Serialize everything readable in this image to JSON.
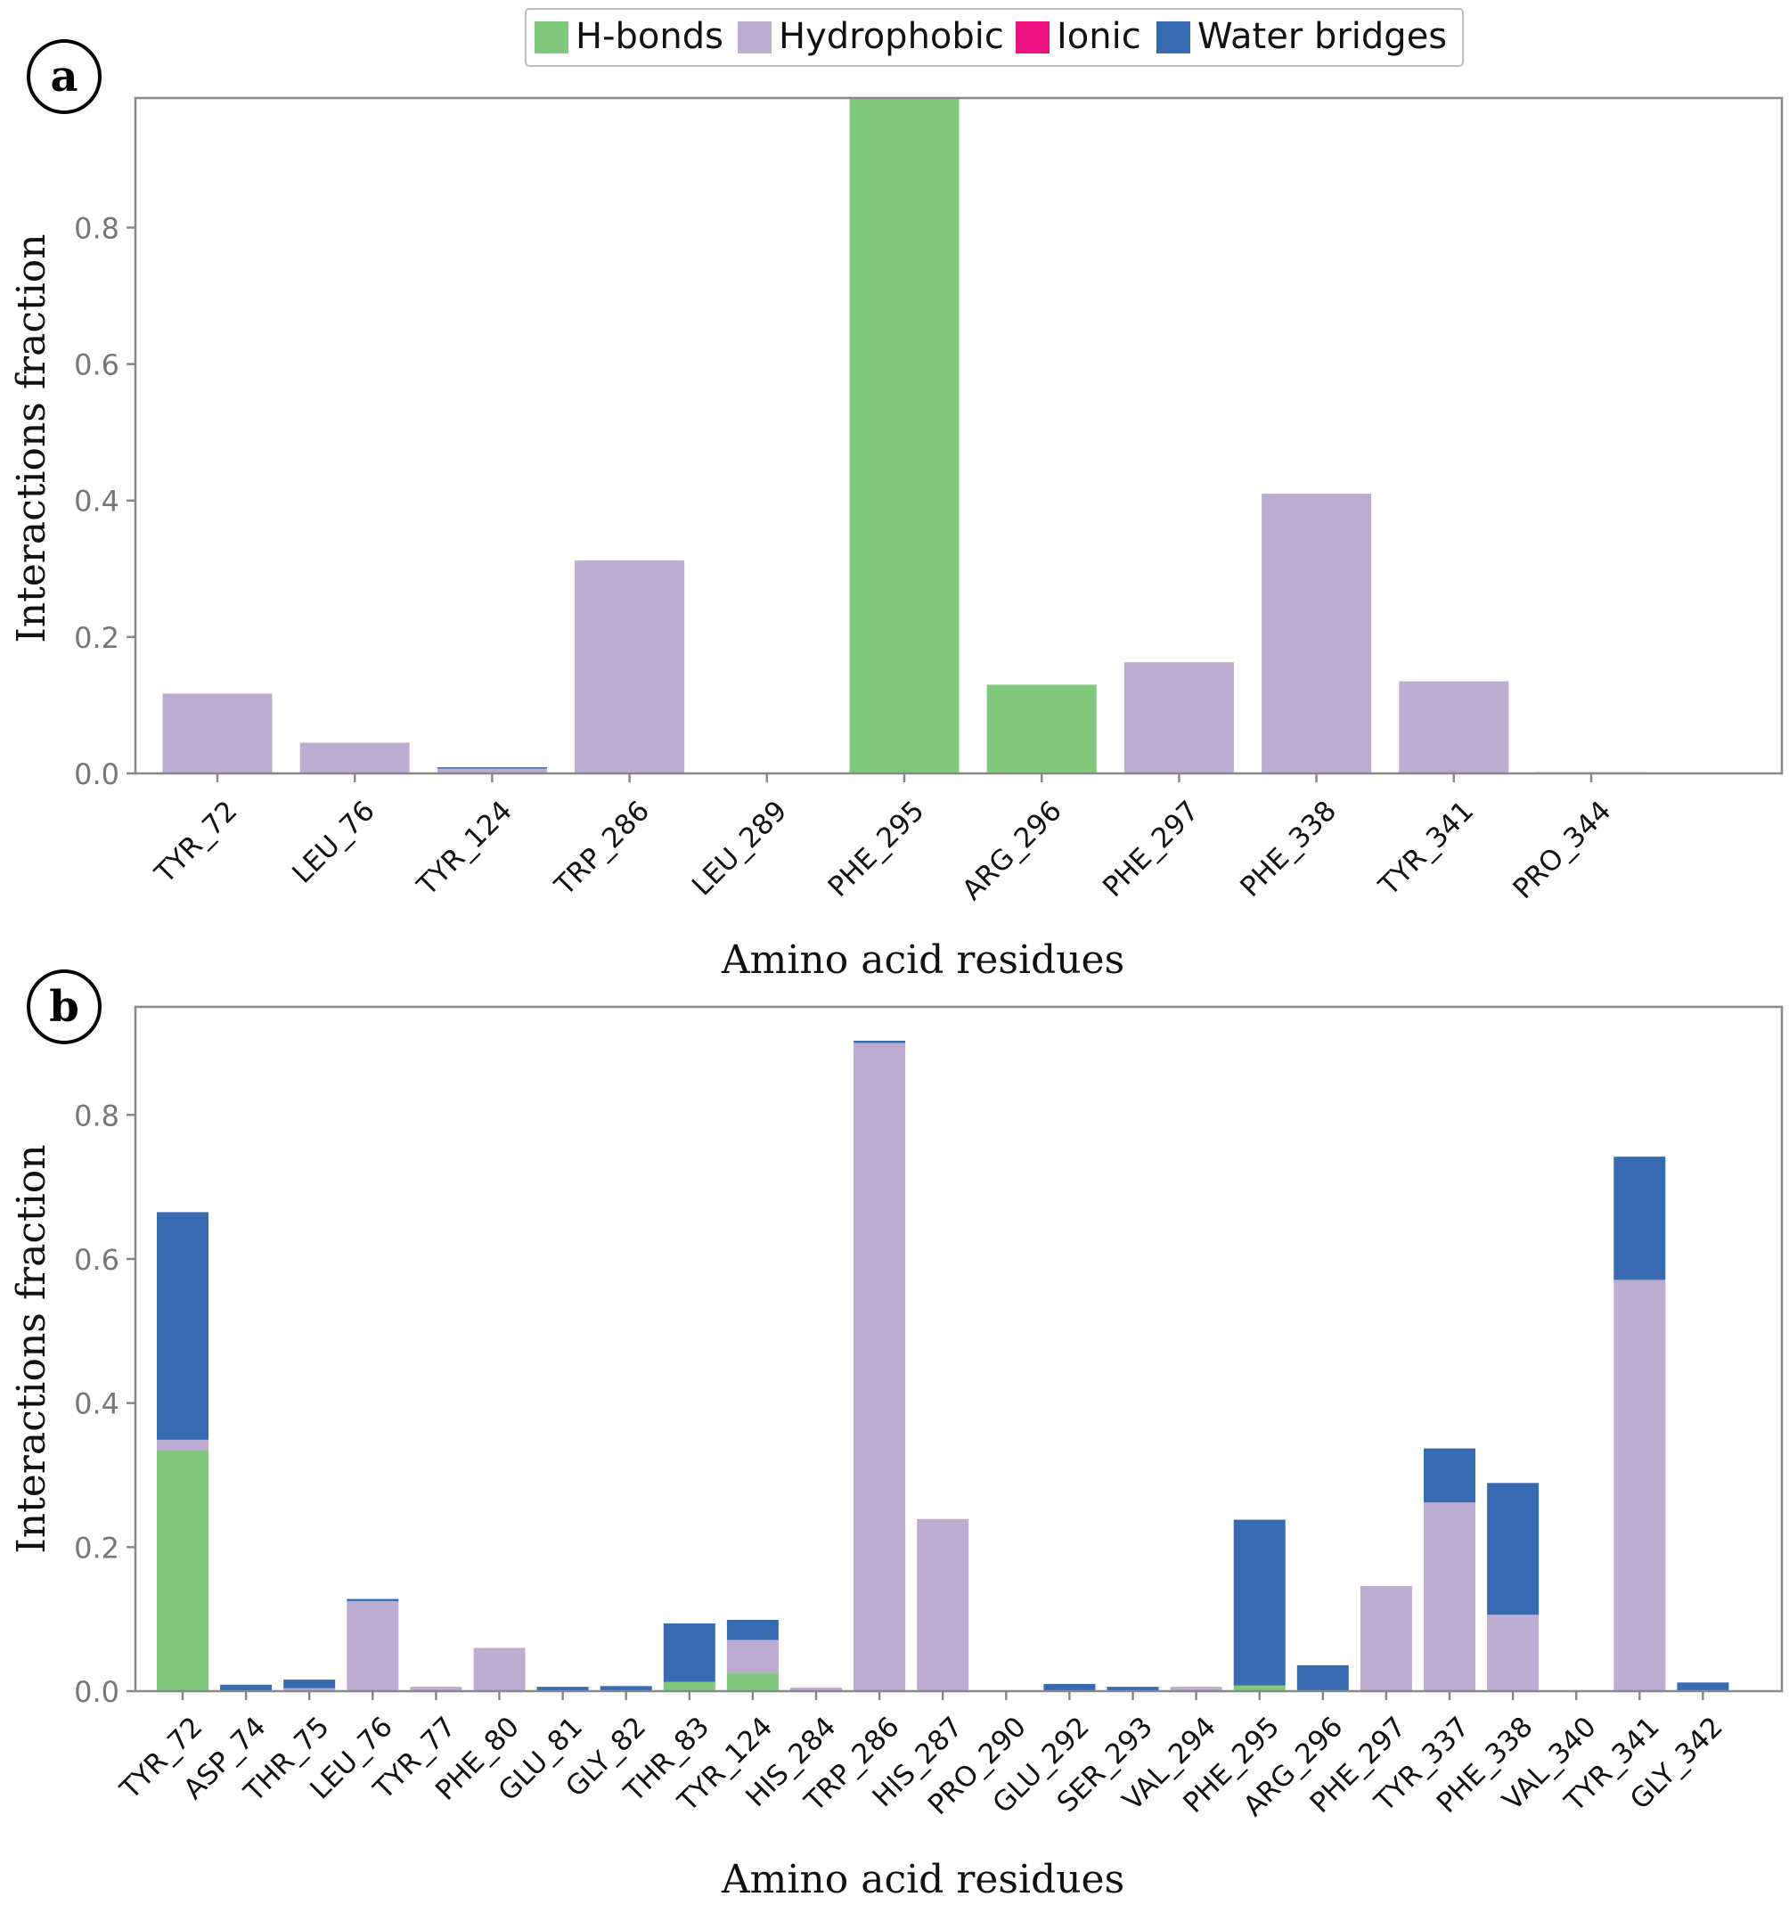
{
  "figure": {
    "legend": [
      {
        "label": "H-bonds",
        "color": "#80c97c",
        "key": "hbonds"
      },
      {
        "label": "Hydrophobic",
        "color": "#bdacd2",
        "key": "hydrophobic"
      },
      {
        "label": "Ionic",
        "color": "#ee1281",
        "key": "ionic"
      },
      {
        "label": "Water bridges",
        "color": "#376ab0",
        "key": "water"
      }
    ]
  },
  "chart_data": [
    {
      "type": "bar",
      "stacked": true,
      "panel_label": "a",
      "xlabel": "Amino acid residues",
      "ylabel": "Interactions fraction",
      "ylim": [
        0,
        0.99
      ],
      "yticks": [
        "0.0",
        "0.2",
        "0.4",
        "0.6",
        "0.8"
      ],
      "categories": [
        "TYR_72",
        "LEU_76",
        "TYR_124",
        "TRP_286",
        "LEU_289",
        "PHE_295",
        "ARG_296",
        "PHE_297",
        "PHE_338",
        "TYR_341",
        "PRO_344"
      ],
      "series": [
        {
          "name": "H-bonds",
          "key": "hbonds",
          "values": [
            0,
            0,
            0,
            0,
            0,
            0.99,
            0.13,
            0,
            0,
            0,
            0
          ]
        },
        {
          "name": "Hydrophobic",
          "key": "hydrophobic",
          "values": [
            0.117,
            0.045,
            0.007,
            0.312,
            0,
            0,
            0,
            0.163,
            0.41,
            0.135,
            0.002
          ]
        },
        {
          "name": "Ionic",
          "key": "ionic",
          "values": [
            0,
            0,
            0,
            0,
            0,
            0,
            0,
            0,
            0,
            0,
            0
          ]
        },
        {
          "name": "Water bridges",
          "key": "water",
          "values": [
            0,
            0,
            0.002,
            0,
            0,
            0,
            0,
            0,
            0,
            0,
            0
          ]
        }
      ]
    },
    {
      "type": "bar",
      "stacked": true,
      "panel_label": "b",
      "xlabel": "Amino acid residues",
      "ylabel": "Interactions fraction",
      "ylim": [
        0,
        0.95
      ],
      "yticks": [
        "0.0",
        "0.2",
        "0.4",
        "0.6",
        "0.8"
      ],
      "categories": [
        "TYR_72",
        "ASP_74",
        "THR_75",
        "LEU_76",
        "TYR_77",
        "PHE_80",
        "GLU_81",
        "GLY_82",
        "THR_83",
        "TYR_124",
        "HIS_284",
        "TRP_286",
        "HIS_287",
        "PRO_290",
        "GLU_292",
        "SER_293",
        "VAL_294",
        "PHE_295",
        "ARG_296",
        "PHE_297",
        "TYR_337",
        "PHE_338",
        "VAL_340",
        "TYR_341",
        "GLY_342"
      ],
      "series": [
        {
          "name": "H-bonds",
          "key": "hbonds",
          "values": [
            0.335,
            0,
            0,
            0,
            0,
            0,
            0,
            0,
            0.013,
            0.025,
            0,
            0,
            0,
            0,
            0,
            0,
            0,
            0.008,
            0,
            0,
            0,
            0,
            0,
            0,
            0
          ]
        },
        {
          "name": "Hydrophobic",
          "key": "hydrophobic",
          "values": [
            0.014,
            0,
            0.004,
            0.125,
            0.006,
            0.06,
            0,
            0,
            0,
            0.046,
            0.005,
            0.9,
            0.239,
            0,
            0,
            0,
            0.006,
            0,
            0,
            0.146,
            0.262,
            0.106,
            0,
            0.571,
            0
          ]
        },
        {
          "name": "Ionic",
          "key": "ionic",
          "values": [
            0,
            0,
            0,
            0,
            0,
            0,
            0,
            0,
            0,
            0,
            0,
            0,
            0,
            0,
            0,
            0,
            0,
            0,
            0,
            0,
            0,
            0,
            0,
            0,
            0
          ]
        },
        {
          "name": "Water bridges",
          "key": "water",
          "values": [
            0.316,
            0.009,
            0.012,
            0.003,
            0,
            0,
            0.006,
            0.007,
            0.081,
            0.028,
            0,
            0.003,
            0,
            0,
            0.01,
            0.006,
            0,
            0.23,
            0.036,
            0,
            0.075,
            0.183,
            0,
            0.171,
            0.012
          ]
        }
      ]
    }
  ]
}
